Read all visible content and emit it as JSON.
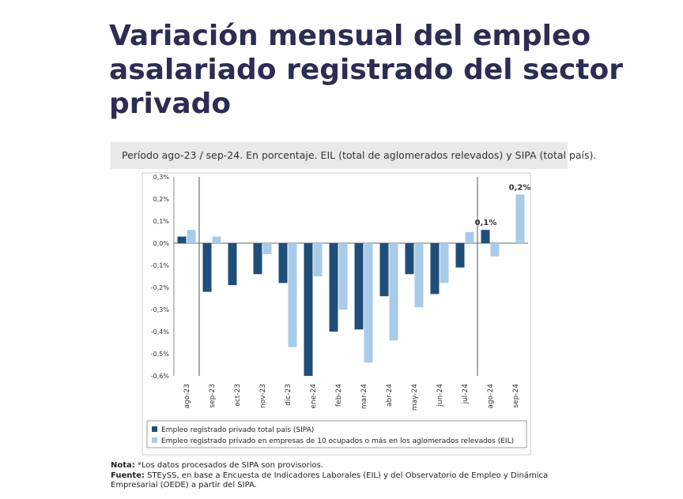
{
  "slide": {
    "title": "Variación mensual del empleo asalariado registrado del sector privado"
  },
  "chart_panel": {
    "subtitle": "Período ago-23 / sep-24. En porcentaje. EIL (total de aglomerados relevados) y SIPA (total país)."
  },
  "notes": {
    "nota_label": "Nota:",
    "nota_text": " *Los datos procesados de SIPA son provisorios.",
    "fuente_label": "Fuente:",
    "fuente_text": " STEySS, en base a Encuesta de Indicadores Laborales (EIL) y del Observatorio de Empleo y Dinámica Empresarial (OEDE) a partir del SIPA."
  },
  "colors": {
    "sipa": "#1f4e79",
    "eil": "#a9cbea",
    "title": "#2b2d52"
  },
  "chart_data": {
    "type": "bar",
    "categories": [
      "ago-23",
      "sep-23",
      "oct-23",
      "nov-23",
      "dic-23",
      "ene-24",
      "feb-24",
      "mar-24",
      "abr-24",
      "may-24",
      "jun-24",
      "jul-24",
      "ago-24",
      "sep-24"
    ],
    "series": [
      {
        "name": "Empleo registrado privado total país (SIPA)",
        "color": "#1f4e79",
        "values": [
          0.03,
          -0.22,
          -0.19,
          -0.14,
          -0.18,
          -0.6,
          -0.4,
          -0.39,
          -0.24,
          -0.14,
          -0.23,
          -0.11,
          0.06,
          null
        ]
      },
      {
        "name": "Empleo registrado privado en empresas de 10 ocupados o más en los aglomerados relevados (EIL)",
        "color": "#a9cbea",
        "values": [
          0.06,
          0.03,
          null,
          -0.05,
          -0.47,
          -0.15,
          -0.3,
          -0.54,
          -0.44,
          -0.29,
          -0.18,
          0.05,
          -0.06,
          0.22
        ]
      }
    ],
    "y_ticks": [
      "0,3%",
      "0,2%",
      "0,1%",
      "0,0%",
      "-0,1%",
      "-0,2%",
      "-0,3%",
      "-0,4%",
      "-0,5%",
      "-0,6%"
    ],
    "ylim": [
      -0.6,
      0.3
    ],
    "annotations": [
      "0,1%",
      "0,2%"
    ],
    "legend_position": "bottom",
    "grid": false
  }
}
